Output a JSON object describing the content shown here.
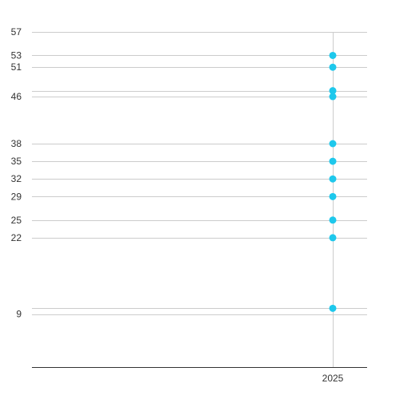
{
  "chart_data": {
    "type": "scatter",
    "title": "",
    "xlabel": "",
    "ylabel": "",
    "x_categories": [
      "2025"
    ],
    "y_ticks": [
      9,
      22,
      25,
      29,
      32,
      35,
      38,
      46,
      51,
      53,
      57
    ],
    "y_tick_labels": [
      "9",
      "22",
      "25",
      "29",
      "32",
      "35",
      "38",
      "46",
      "51",
      "53",
      "57"
    ],
    "ylim": [
      0,
      57
    ],
    "grid": true,
    "legend": "none",
    "series": [
      {
        "x": [
          "2025",
          "2025",
          "2025",
          "2025",
          "2025",
          "2025",
          "2025",
          "2025",
          "2025",
          "2025",
          "2025"
        ],
        "y": [
          10,
          22,
          25,
          29,
          32,
          35,
          38,
          46,
          47,
          51,
          53
        ]
      }
    ],
    "colors": {
      "marker": "#1ec8ec",
      "grid": "#cccccc",
      "axis": "#333333",
      "text": "#333333"
    }
  }
}
